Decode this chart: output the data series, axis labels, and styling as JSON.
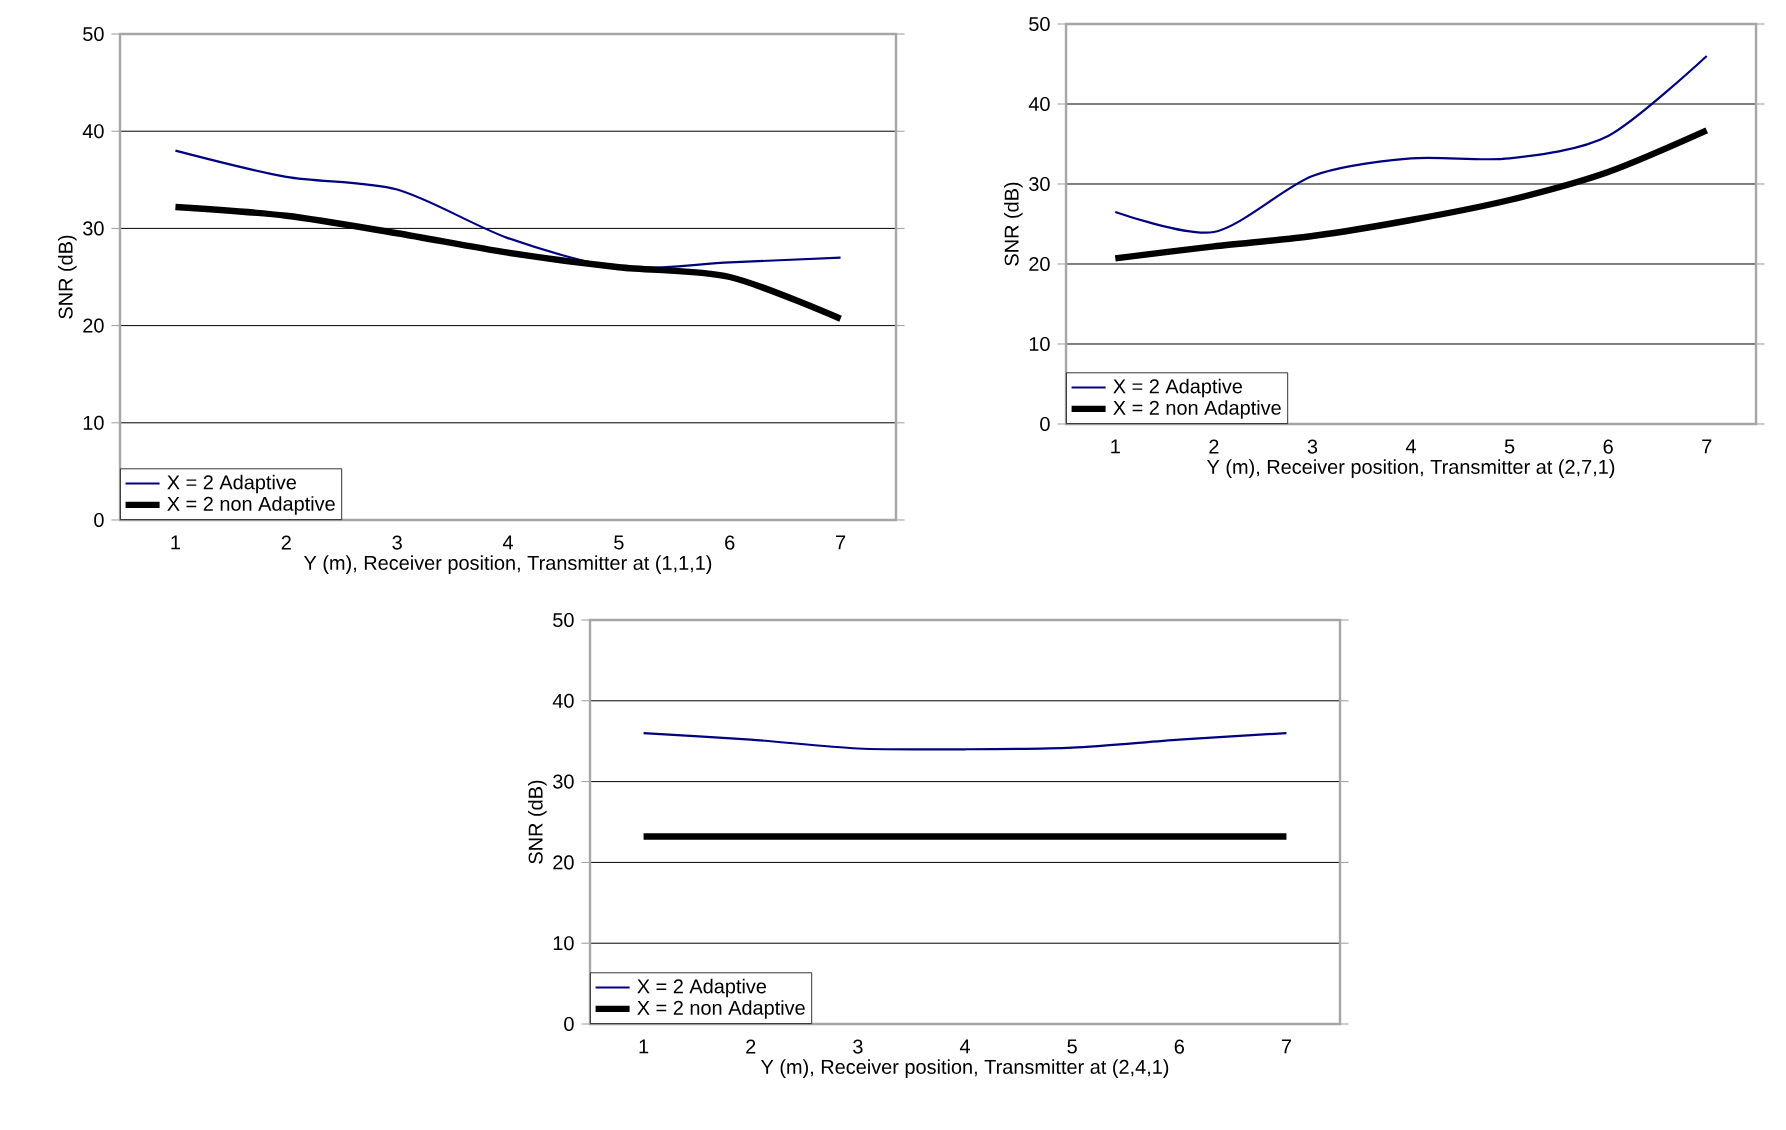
{
  "chart_data": [
    {
      "type": "line",
      "categories": [
        "1",
        "2",
        "3",
        "4",
        "5",
        "6",
        "7"
      ],
      "xlabel": "Y (m), Receiver position, Transmitter at (1,1,1)",
      "ylabel": "SNR (dB)",
      "ylim": [
        0,
        50
      ],
      "yticks": [
        0,
        10,
        20,
        30,
        40,
        50
      ],
      "grid": "y",
      "legend": "bottom left",
      "line_style": "solid",
      "series": [
        {
          "name": "X = 2 Adaptive",
          "color": "#000080",
          "values": [
            38,
            35.3,
            34,
            29,
            26,
            26.5,
            27
          ]
        },
        {
          "name": "X = 2 non Adaptive",
          "color": "#000000",
          "values": [
            32.2,
            31.3,
            29.5,
            27.5,
            26,
            25,
            20.7
          ]
        }
      ]
    },
    {
      "type": "line",
      "categories": [
        "1",
        "2",
        "3",
        "4",
        "5",
        "6",
        "7"
      ],
      "xlabel": "Y (m), Receiver position, Transmitter at (2,7,1)",
      "ylabel": "SNR (dB)",
      "ylim": [
        0,
        50
      ],
      "yticks": [
        0,
        10,
        20,
        30,
        40,
        50
      ],
      "grid": "y",
      "legend": "bottom left",
      "line_style": "solid",
      "series": [
        {
          "name": "X = 2 Adaptive",
          "color": "#000080",
          "values": [
            26.5,
            24,
            31,
            33.2,
            33.2,
            36,
            46
          ]
        },
        {
          "name": "X = 2 non Adaptive",
          "color": "#000000",
          "values": [
            20.7,
            22.2,
            23.5,
            25.5,
            28,
            31.5,
            36.7
          ]
        }
      ]
    },
    {
      "type": "line",
      "categories": [
        "1",
        "2",
        "3",
        "4",
        "5",
        "6",
        "7"
      ],
      "xlabel": "Y (m), Receiver position, Transmitter at (2,4,1)",
      "ylabel": "SNR (dB)",
      "ylim": [
        0,
        50
      ],
      "yticks": [
        0,
        10,
        20,
        30,
        40,
        50
      ],
      "grid": "y",
      "legend": "bottom left",
      "line_style": "solid",
      "series": [
        {
          "name": "X = 2  Adaptive",
          "color": "#000080",
          "values": [
            36,
            35.2,
            34.1,
            34,
            34.2,
            35.2,
            36
          ]
        },
        {
          "name": "X = 2 non Adaptive",
          "color": "#000000",
          "values": [
            23.2,
            23.2,
            23.2,
            23.2,
            23.2,
            23.2,
            23.2
          ]
        }
      ]
    }
  ]
}
